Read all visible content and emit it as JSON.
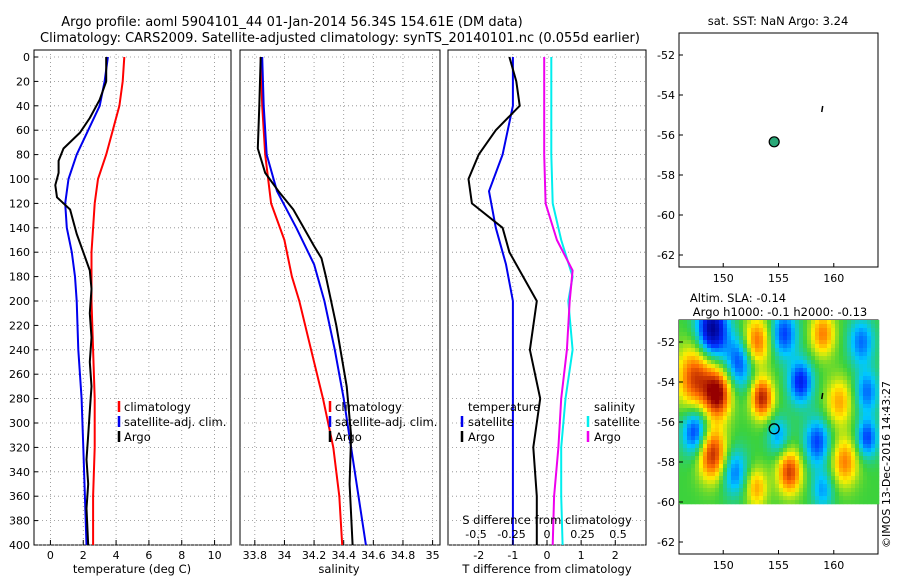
{
  "title_line1": "Argo profile: aoml 5904101_44 01-Jan-2014 56.34S 154.61E (DM data)",
  "title_line2": "Climatology: CARS2009. Satellite-adjusted climatology: synTS_20140101.nc (0.055d earlier)",
  "credit": "©IMOS 13-Dec-2016 14:43:27",
  "colors": {
    "red": "#ff0000",
    "blue": "#0000ee",
    "black": "#000000",
    "magenta": "#ee00ee",
    "cyan": "#00eeee"
  },
  "chart_data": [
    {
      "type": "line",
      "id": "temperature",
      "xlabel": "temperature (deg C)",
      "xlim": [
        -1,
        11
      ],
      "ylim": [
        0,
        400
      ],
      "xticks": [
        "0",
        "2",
        "4",
        "6",
        "8",
        "10"
      ],
      "xtick_values": [
        0,
        2,
        4,
        6,
        8,
        10
      ],
      "yticks": [
        "0",
        "20",
        "40",
        "60",
        "80",
        "100",
        "120",
        "140",
        "160",
        "180",
        "200",
        "220",
        "240",
        "260",
        "280",
        "300",
        "320",
        "340",
        "360",
        "380",
        "400"
      ],
      "legend": [
        "climatology",
        "satellite-adj. clim.",
        "Argo"
      ],
      "series": [
        {
          "name": "climatology",
          "color": "red",
          "points": [
            [
              4.5,
              0
            ],
            [
              4.4,
              20
            ],
            [
              4.2,
              40
            ],
            [
              3.8,
              60
            ],
            [
              3.4,
              80
            ],
            [
              2.9,
              100
            ],
            [
              2.7,
              120
            ],
            [
              2.6,
              140
            ],
            [
              2.5,
              160
            ],
            [
              2.5,
              200
            ],
            [
              2.6,
              240
            ],
            [
              2.7,
              280
            ],
            [
              2.7,
              320
            ],
            [
              2.6,
              360
            ],
            [
              2.6,
              400
            ]
          ]
        },
        {
          "name": "satellite-adj. clim.",
          "color": "blue",
          "points": [
            [
              3.5,
              0
            ],
            [
              3.3,
              20
            ],
            [
              3.0,
              40
            ],
            [
              2.3,
              60
            ],
            [
              1.6,
              80
            ],
            [
              1.1,
              100
            ],
            [
              0.9,
              120
            ],
            [
              1.0,
              140
            ],
            [
              1.3,
              160
            ],
            [
              1.5,
              180
            ],
            [
              1.6,
              200
            ],
            [
              1.7,
              240
            ],
            [
              1.9,
              280
            ],
            [
              2.0,
              320
            ],
            [
              2.1,
              360
            ],
            [
              2.2,
              400
            ]
          ]
        },
        {
          "name": "Argo",
          "color": "black",
          "points": [
            [
              3.4,
              0
            ],
            [
              3.4,
              20
            ],
            [
              3.0,
              35
            ],
            [
              2.4,
              50
            ],
            [
              1.8,
              62
            ],
            [
              0.8,
              75
            ],
            [
              0.5,
              85
            ],
            [
              0.5,
              95
            ],
            [
              0.3,
              105
            ],
            [
              0.4,
              115
            ],
            [
              1.2,
              125
            ],
            [
              1.4,
              135
            ],
            [
              1.6,
              145
            ],
            [
              2.0,
              160
            ],
            [
              2.4,
              175
            ],
            [
              2.5,
              190
            ],
            [
              2.4,
              210
            ],
            [
              2.5,
              230
            ],
            [
              2.4,
              250
            ],
            [
              2.5,
              270
            ],
            [
              2.4,
              290
            ],
            [
              2.3,
              310
            ],
            [
              2.2,
              330
            ],
            [
              2.3,
              350
            ],
            [
              2.2,
              370
            ],
            [
              2.3,
              400
            ]
          ]
        }
      ]
    },
    {
      "type": "line",
      "id": "salinity",
      "xlabel": "salinity",
      "xlim": [
        33.7,
        35.05
      ],
      "ylim": [
        0,
        400
      ],
      "xticks": [
        "33.8",
        "34",
        "34.2",
        "34.4",
        "34.6",
        "34.8",
        "35"
      ],
      "xtick_values": [
        33.8,
        34.0,
        34.2,
        34.4,
        34.6,
        34.8,
        35.0
      ],
      "legend": [
        "climatology",
        "satellite-adj. clim.",
        "Argo"
      ],
      "series": [
        {
          "name": "climatology",
          "color": "red",
          "points": [
            [
              33.84,
              0
            ],
            [
              33.85,
              40
            ],
            [
              33.87,
              80
            ],
            [
              33.91,
              120
            ],
            [
              34.0,
              150
            ],
            [
              34.05,
              180
            ],
            [
              34.1,
              200
            ],
            [
              34.18,
              240
            ],
            [
              34.26,
              280
            ],
            [
              34.33,
              320
            ],
            [
              34.37,
              360
            ],
            [
              34.39,
              400
            ]
          ]
        },
        {
          "name": "satellite-adj. clim.",
          "color": "blue",
          "points": [
            [
              33.85,
              0
            ],
            [
              33.86,
              40
            ],
            [
              33.88,
              80
            ],
            [
              33.95,
              110
            ],
            [
              34.08,
              140
            ],
            [
              34.2,
              170
            ],
            [
              34.27,
              200
            ],
            [
              34.34,
              240
            ],
            [
              34.4,
              280
            ],
            [
              34.45,
              320
            ],
            [
              34.5,
              360
            ],
            [
              34.55,
              400
            ]
          ]
        },
        {
          "name": "Argo",
          "color": "black",
          "points": [
            [
              33.84,
              0
            ],
            [
              33.83,
              40
            ],
            [
              33.82,
              75
            ],
            [
              33.87,
              95
            ],
            [
              33.96,
              110
            ],
            [
              34.06,
              125
            ],
            [
              34.13,
              140
            ],
            [
              34.2,
              155
            ],
            [
              34.25,
              165
            ],
            [
              34.28,
              180
            ],
            [
              34.35,
              220
            ],
            [
              34.42,
              270
            ],
            [
              34.45,
              310
            ],
            [
              34.44,
              350
            ],
            [
              34.46,
              400
            ]
          ]
        }
      ]
    },
    {
      "type": "line",
      "id": "difference",
      "xlabel": "T difference from climatology",
      "xlabel_top": "S difference from climatology",
      "xlim": [
        -2.9,
        2.9
      ],
      "ylim": [
        0,
        400
      ],
      "xticks": [
        "-2",
        "-1",
        "0",
        "1",
        "2"
      ],
      "xtick_values": [
        -2,
        -1,
        0,
        1,
        2
      ],
      "s_ticks": [
        "-0.5",
        "-0.25",
        "0",
        "0.25",
        "0.5"
      ],
      "s_tick_values": [
        -0.5,
        -0.25,
        0,
        0.25,
        0.5
      ],
      "legend_t_title": "temperature",
      "legend_s_title": "salinity",
      "legend": [
        "satellite",
        "Argo"
      ],
      "series": [
        {
          "name": "T satellite",
          "color": "blue",
          "points": [
            [
              -1.0,
              0
            ],
            [
              -1.0,
              40
            ],
            [
              -1.3,
              80
            ],
            [
              -1.7,
              110
            ],
            [
              -1.5,
              140
            ],
            [
              -1.2,
              170
            ],
            [
              -1.0,
              200
            ],
            [
              -1.0,
              300
            ],
            [
              -1.0,
              400
            ]
          ]
        },
        {
          "name": "T Argo",
          "color": "black",
          "points": [
            [
              -1.1,
              0
            ],
            [
              -0.9,
              20
            ],
            [
              -0.8,
              40
            ],
            [
              -1.5,
              60
            ],
            [
              -2.0,
              80
            ],
            [
              -2.3,
              100
            ],
            [
              -2.2,
              120
            ],
            [
              -1.3,
              140
            ],
            [
              -1.1,
              160
            ],
            [
              -0.7,
              180
            ],
            [
              -0.3,
              200
            ],
            [
              -0.5,
              240
            ],
            [
              -0.2,
              280
            ],
            [
              -0.4,
              320
            ],
            [
              -0.3,
              360
            ],
            [
              -0.3,
              400
            ]
          ]
        },
        {
          "name": "S satellite",
          "color": "cyan",
          "points": [
            [
              0.03,
              0
            ],
            [
              0.03,
              40
            ],
            [
              0.03,
              80
            ],
            [
              0.04,
              120
            ],
            [
              0.1,
              150
            ],
            [
              0.18,
              180
            ],
            [
              0.15,
              200
            ],
            [
              0.18,
              240
            ],
            [
              0.13,
              280
            ],
            [
              0.1,
              320
            ],
            [
              0.1,
              360
            ],
            [
              0.11,
              400
            ]
          ]
        },
        {
          "name": "S Argo",
          "color": "magenta",
          "points": [
            [
              -0.02,
              0
            ],
            [
              -0.02,
              40
            ],
            [
              -0.02,
              80
            ],
            [
              -0.01,
              120
            ],
            [
              0.07,
              150
            ],
            [
              0.18,
              175
            ],
            [
              0.16,
              200
            ],
            [
              0.14,
              240
            ],
            [
              0.1,
              280
            ],
            [
              0.08,
              320
            ],
            [
              0.05,
              360
            ],
            [
              0.04,
              400
            ]
          ]
        }
      ]
    },
    {
      "type": "scatter",
      "id": "sst-map",
      "title": "sat. SST: NaN Argo: 3.24",
      "xlim": [
        146,
        164
      ],
      "ylim": [
        -62.6,
        -50.9
      ],
      "xticks": [
        "150",
        "155",
        "160"
      ],
      "xtick_values": [
        150,
        155,
        160
      ],
      "yticks": [
        "-52",
        "-54",
        "-56",
        "-58",
        "-60",
        "-62"
      ],
      "ytick_values": [
        -52,
        -54,
        -56,
        -58,
        -60,
        -62
      ],
      "float_position": [
        154.61,
        -56.34
      ],
      "track_point": [
        159.0,
        -54.7
      ]
    },
    {
      "type": "heatmap",
      "id": "sla-map",
      "title_line1": "Altim. SLA: -0.14",
      "title_line2": "Argo h1000: -0.1 h2000: -0.13",
      "xlim": [
        146,
        164
      ],
      "ylim": [
        -62.6,
        -50.9
      ],
      "data_ylim": [
        -60.1,
        -50.9
      ],
      "xticks": [
        "150",
        "155",
        "160"
      ],
      "xtick_values": [
        150,
        155,
        160
      ],
      "yticks": [
        "-52",
        "-54",
        "-56",
        "-58",
        "-60",
        "-62"
      ],
      "ytick_values": [
        -52,
        -54,
        -56,
        -58,
        -60,
        -62
      ],
      "float_position": [
        154.61,
        -56.34
      ],
      "track_point": [
        159.0,
        -54.7
      ],
      "anomalies": [
        {
          "lon": 149.0,
          "lat": -51.4,
          "v": -1.0,
          "r": 1.4
        },
        {
          "lon": 147.5,
          "lat": -53.8,
          "v": 0.8,
          "r": 1.6
        },
        {
          "lon": 149.5,
          "lat": -54.6,
          "v": 1.0,
          "r": 1.2
        },
        {
          "lon": 151.5,
          "lat": -53.0,
          "v": -0.6,
          "r": 1.3
        },
        {
          "lon": 153.0,
          "lat": -52.0,
          "v": 0.7,
          "r": 1.2
        },
        {
          "lon": 155.5,
          "lat": -51.6,
          "v": -0.6,
          "r": 1.2
        },
        {
          "lon": 159.0,
          "lat": -51.6,
          "v": 0.6,
          "r": 1.1
        },
        {
          "lon": 162.5,
          "lat": -52.0,
          "v": -0.5,
          "r": 1.2
        },
        {
          "lon": 157.0,
          "lat": -54.0,
          "v": -0.7,
          "r": 1.1
        },
        {
          "lon": 153.5,
          "lat": -54.8,
          "v": 0.9,
          "r": 1.0
        },
        {
          "lon": 160.5,
          "lat": -55.0,
          "v": 0.5,
          "r": 1.2
        },
        {
          "lon": 163.0,
          "lat": -54.5,
          "v": -0.5,
          "r": 1.1
        },
        {
          "lon": 147.5,
          "lat": -56.5,
          "v": -0.7,
          "r": 1.2
        },
        {
          "lon": 149.0,
          "lat": -57.6,
          "v": 0.9,
          "r": 1.3
        },
        {
          "lon": 151.0,
          "lat": -58.5,
          "v": -0.5,
          "r": 1.2
        },
        {
          "lon": 155.0,
          "lat": -56.7,
          "v": -0.4,
          "r": 1.0
        },
        {
          "lon": 156.0,
          "lat": -58.5,
          "v": 0.8,
          "r": 1.1
        },
        {
          "lon": 158.5,
          "lat": -57.0,
          "v": -0.6,
          "r": 1.2
        },
        {
          "lon": 161.0,
          "lat": -58.0,
          "v": 0.6,
          "r": 1.2
        },
        {
          "lon": 163.0,
          "lat": -56.8,
          "v": -0.6,
          "r": 1.0
        },
        {
          "lon": 153.0,
          "lat": -59.3,
          "v": 0.5,
          "r": 1.0
        },
        {
          "lon": 159.0,
          "lat": -59.4,
          "v": -0.4,
          "r": 1.0
        }
      ]
    }
  ]
}
